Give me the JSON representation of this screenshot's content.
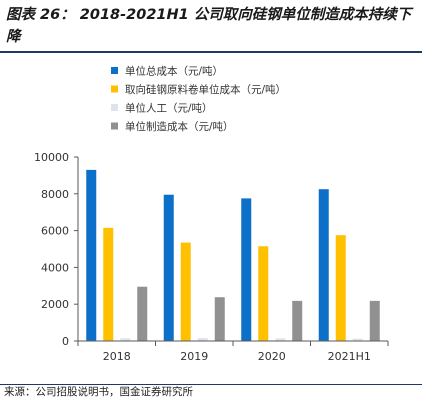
{
  "figure": {
    "title": "图表 26：  2018-2021H1 公司取向硅钢单位制造成本持续下降",
    "source": "来源：公司招股说明书，国金证券研究所"
  },
  "colors": {
    "rule": "#1f3864",
    "axis": "#595959"
  },
  "chart_data": {
    "type": "bar",
    "categories": [
      "2018",
      "2019",
      "2020",
      "2021H1"
    ],
    "series": [
      {
        "name": "单位总成本（元/吨）",
        "color": "#0c6fc8",
        "values": [
          9300,
          7950,
          7750,
          8250
        ]
      },
      {
        "name": "取向硅钢原料卷单位成本（元/吨）",
        "color": "#ffc000",
        "values": [
          6150,
          5350,
          5150,
          5750
        ]
      },
      {
        "name": "单位人工（元/吨）",
        "color": "#dfe3ec",
        "values": [
          150,
          160,
          140,
          130
        ]
      },
      {
        "name": "单位制造成本（元/吨）",
        "color": "#919191",
        "values": [
          2950,
          2380,
          2180,
          2180
        ]
      }
    ],
    "ylim": [
      0,
      10000
    ],
    "yticks": [
      0,
      2000,
      4000,
      6000,
      8000,
      10000
    ],
    "grid": false,
    "legend_position": "top-left"
  }
}
